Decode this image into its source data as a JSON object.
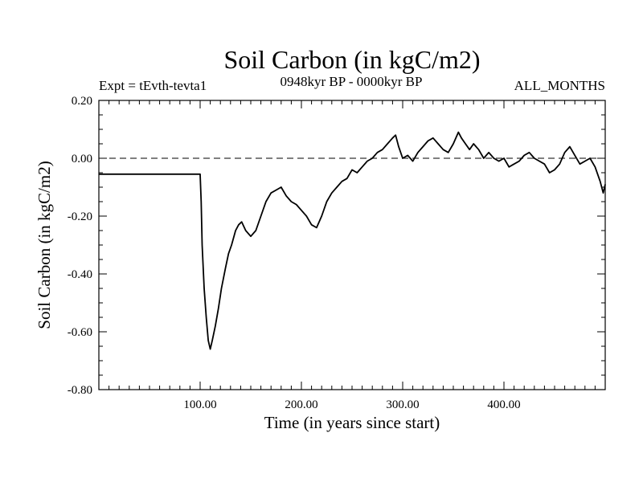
{
  "chart_data": {
    "type": "line",
    "title": "Soil Carbon (in kgC/m2)",
    "subtitle_left": "Expt = tEvth-tevta1",
    "subtitle_center": "0948kyr BP - 0000kyr BP",
    "subtitle_right": "ALL_MONTHS",
    "xlabel": "Time (in years since start)",
    "ylabel": "Soil Carbon (in kgC/m2)",
    "xlim": [
      0,
      500
    ],
    "ylim": [
      -0.8,
      0.2
    ],
    "xticks": [
      100,
      200,
      300,
      400
    ],
    "xtick_labels": [
      "100.00",
      "200.00",
      "300.00",
      "400.00"
    ],
    "yticks": [
      0.2,
      0.0,
      -0.2,
      -0.4,
      -0.6,
      -0.8
    ],
    "ytick_labels": [
      "0.20",
      "0.00",
      "-0.20",
      "-0.40",
      "-0.60",
      "-0.80"
    ],
    "reference_line": {
      "y": 0.0,
      "style": "dashed"
    },
    "series": [
      {
        "name": "Soil Carbon",
        "color": "#000000",
        "points": [
          [
            0,
            -0.055
          ],
          [
            100,
            -0.055
          ],
          [
            101,
            -0.15
          ],
          [
            102,
            -0.3
          ],
          [
            104,
            -0.45
          ],
          [
            106,
            -0.55
          ],
          [
            108,
            -0.63
          ],
          [
            110,
            -0.66
          ],
          [
            112,
            -0.63
          ],
          [
            115,
            -0.58
          ],
          [
            118,
            -0.52
          ],
          [
            121,
            -0.45
          ],
          [
            125,
            -0.38
          ],
          [
            128,
            -0.33
          ],
          [
            131,
            -0.3
          ],
          [
            135,
            -0.25
          ],
          [
            138,
            -0.23
          ],
          [
            141,
            -0.22
          ],
          [
            145,
            -0.25
          ],
          [
            150,
            -0.27
          ],
          [
            155,
            -0.25
          ],
          [
            160,
            -0.2
          ],
          [
            165,
            -0.15
          ],
          [
            170,
            -0.12
          ],
          [
            175,
            -0.11
          ],
          [
            180,
            -0.1
          ],
          [
            185,
            -0.13
          ],
          [
            190,
            -0.15
          ],
          [
            195,
            -0.16
          ],
          [
            200,
            -0.18
          ],
          [
            205,
            -0.2
          ],
          [
            210,
            -0.23
          ],
          [
            215,
            -0.24
          ],
          [
            220,
            -0.2
          ],
          [
            225,
            -0.15
          ],
          [
            230,
            -0.12
          ],
          [
            235,
            -0.1
          ],
          [
            240,
            -0.08
          ],
          [
            245,
            -0.07
          ],
          [
            250,
            -0.04
          ],
          [
            255,
            -0.05
          ],
          [
            260,
            -0.03
          ],
          [
            265,
            -0.01
          ],
          [
            270,
            0.0
          ],
          [
            275,
            0.02
          ],
          [
            280,
            0.03
          ],
          [
            285,
            0.05
          ],
          [
            290,
            0.07
          ],
          [
            293,
            0.08
          ],
          [
            296,
            0.04
          ],
          [
            300,
            0.0
          ],
          [
            305,
            0.01
          ],
          [
            310,
            -0.01
          ],
          [
            315,
            0.02
          ],
          [
            320,
            0.04
          ],
          [
            325,
            0.06
          ],
          [
            330,
            0.07
          ],
          [
            335,
            0.05
          ],
          [
            340,
            0.03
          ],
          [
            345,
            0.02
          ],
          [
            350,
            0.05
          ],
          [
            355,
            0.09
          ],
          [
            358,
            0.07
          ],
          [
            362,
            0.05
          ],
          [
            366,
            0.03
          ],
          [
            370,
            0.05
          ],
          [
            375,
            0.03
          ],
          [
            380,
            0.0
          ],
          [
            385,
            0.02
          ],
          [
            390,
            0.0
          ],
          [
            395,
            -0.01
          ],
          [
            400,
            0.0
          ],
          [
            405,
            -0.03
          ],
          [
            410,
            -0.02
          ],
          [
            415,
            -0.01
          ],
          [
            420,
            0.01
          ],
          [
            425,
            0.02
          ],
          [
            430,
            0.0
          ],
          [
            435,
            -0.01
          ],
          [
            440,
            -0.02
          ],
          [
            445,
            -0.05
          ],
          [
            450,
            -0.04
          ],
          [
            455,
            -0.02
          ],
          [
            460,
            0.02
          ],
          [
            465,
            0.04
          ],
          [
            470,
            0.01
          ],
          [
            475,
            -0.02
          ],
          [
            480,
            -0.01
          ],
          [
            485,
            0.0
          ],
          [
            490,
            -0.03
          ],
          [
            495,
            -0.08
          ],
          [
            498,
            -0.12
          ],
          [
            500,
            -0.09
          ]
        ]
      }
    ]
  }
}
